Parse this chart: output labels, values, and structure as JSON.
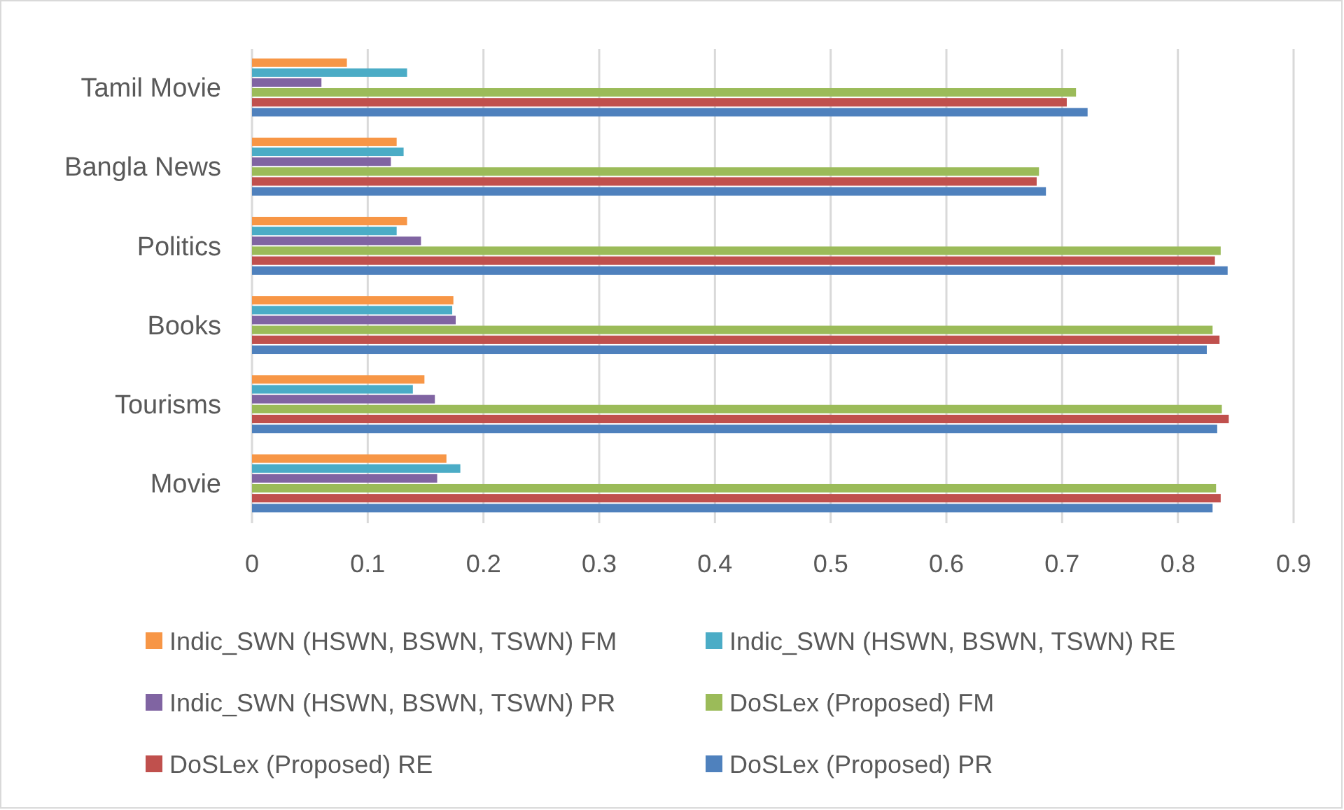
{
  "chart_data": {
    "type": "bar",
    "orientation": "horizontal",
    "categories": [
      "Tamil Movie",
      "Bangla News",
      "Politics",
      "Books",
      "Tourisms",
      "Movie"
    ],
    "series": [
      {
        "name": "Indic_SWN (HSWN, BSWN, TSWN) FM",
        "color": "#f79646",
        "values": [
          0.082,
          0.125,
          0.134,
          0.174,
          0.149,
          0.168
        ]
      },
      {
        "name": "Indic_SWN (HSWN, BSWN, TSWN) RE",
        "color": "#4bacc6",
        "values": [
          0.134,
          0.131,
          0.125,
          0.173,
          0.139,
          0.18
        ]
      },
      {
        "name": "Indic_SWN (HSWN, BSWN, TSWN) PR",
        "color": "#8064a2",
        "values": [
          0.06,
          0.12,
          0.146,
          0.176,
          0.158,
          0.16
        ]
      },
      {
        "name": "DoSLex (Proposed) FM",
        "color": "#9bbb59",
        "values": [
          0.712,
          0.68,
          0.837,
          0.83,
          0.838,
          0.833
        ]
      },
      {
        "name": "DoSLex (Proposed) RE",
        "color": "#c0504d",
        "values": [
          0.704,
          0.678,
          0.832,
          0.836,
          0.844,
          0.837
        ]
      },
      {
        "name": "DoSLex (Proposed) PR",
        "color": "#4f81bd",
        "values": [
          0.722,
          0.686,
          0.843,
          0.825,
          0.834,
          0.83
        ]
      }
    ],
    "xlim": [
      0,
      0.9
    ],
    "xticks": [
      0,
      0.1,
      0.2,
      0.3,
      0.4,
      0.5,
      0.6,
      0.7,
      0.8,
      0.9
    ],
    "grid": "x",
    "legend": "bottom"
  }
}
